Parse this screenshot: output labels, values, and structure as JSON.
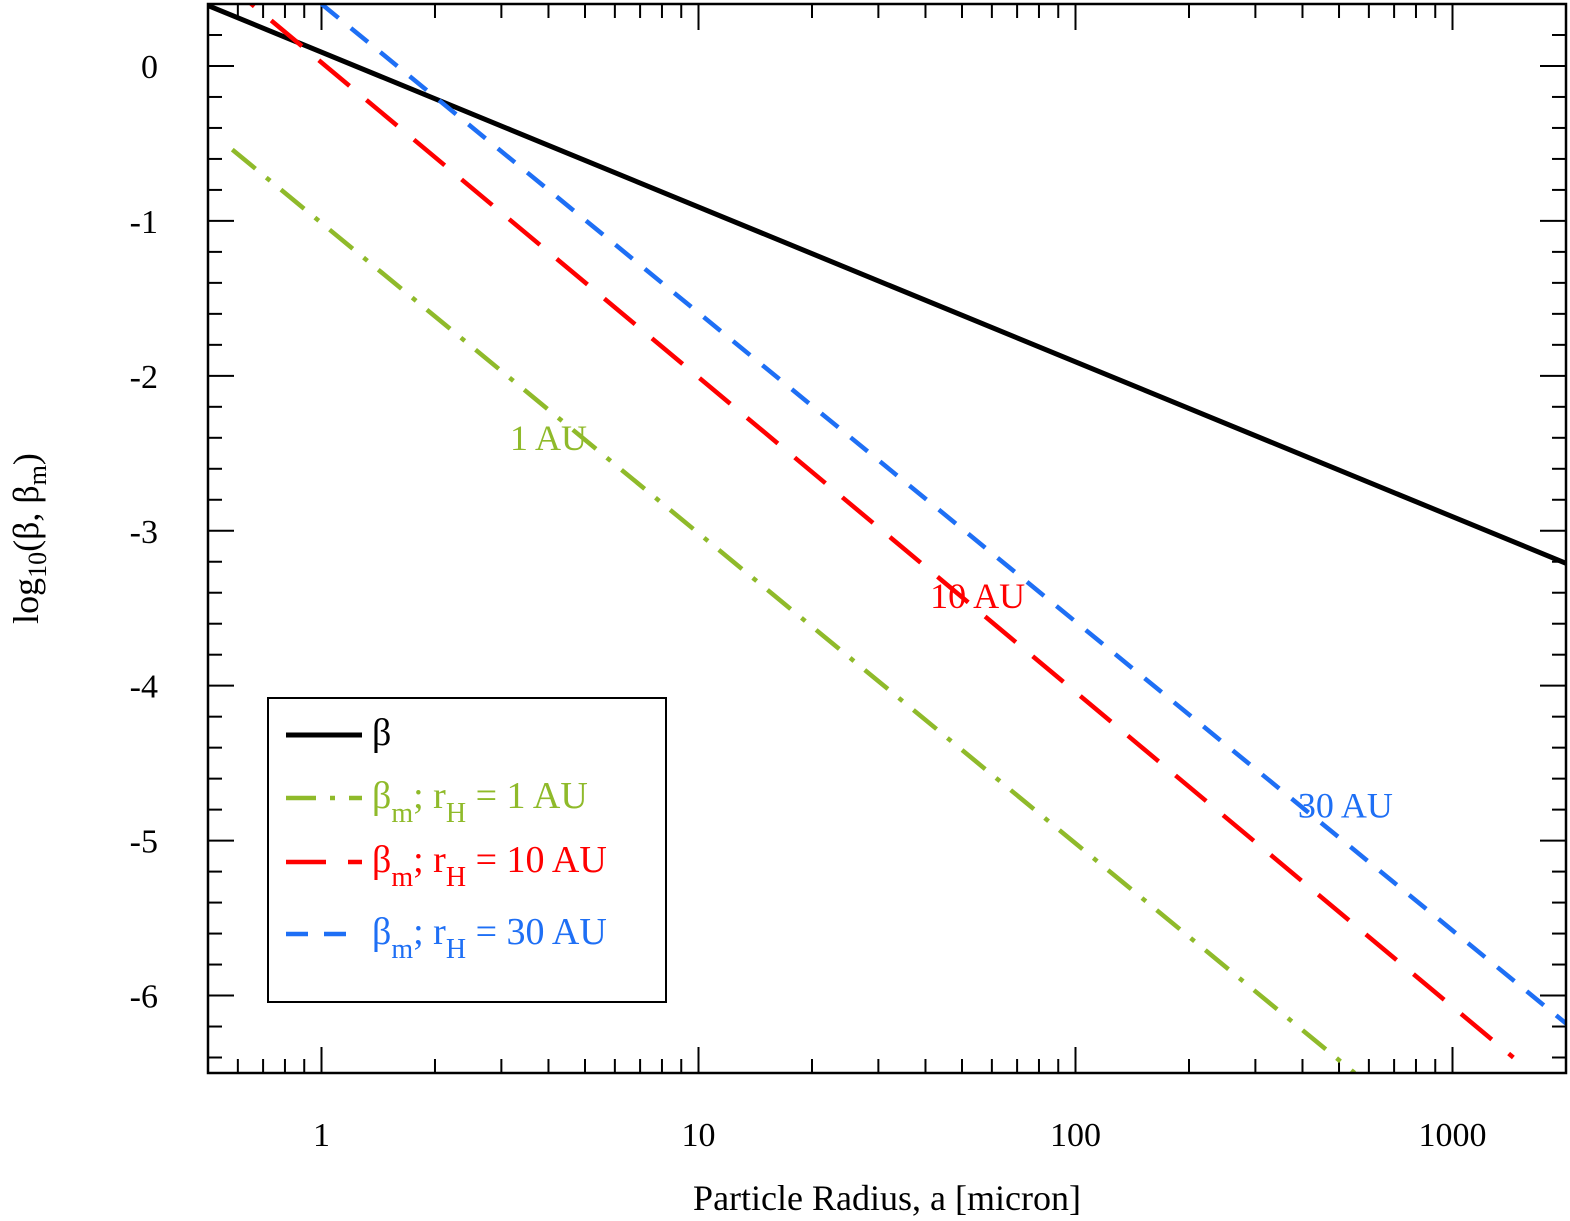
{
  "chart_data": {
    "type": "line",
    "xlabel": "Particle Radius, a [micron]",
    "ylabel": {
      "prefix": "log",
      "sub": "10",
      "mid": "(β, β",
      "sub2": "m",
      "suffix": ")"
    },
    "xscale": "log",
    "xlim": [
      0.5,
      2000
    ],
    "ylim": [
      -6.5,
      0.4
    ],
    "x_tick_labels": [
      {
        "value": 1,
        "label": "1"
      },
      {
        "value": 10,
        "label": "10"
      },
      {
        "value": 100,
        "label": "100"
      },
      {
        "value": 1000,
        "label": "1000"
      }
    ],
    "y_tick_labels": [
      {
        "value": 0,
        "label": "0"
      },
      {
        "value": -1,
        "label": "-1"
      },
      {
        "value": -2,
        "label": "-2"
      },
      {
        "value": -3,
        "label": "-3"
      },
      {
        "value": -4,
        "label": "-4"
      },
      {
        "value": -5,
        "label": "-5"
      },
      {
        "value": -6,
        "label": "-6"
      }
    ],
    "grid": false,
    "legend_position": "lower-left",
    "series": [
      {
        "id": "beta",
        "color": "#000000",
        "dash": "solid",
        "x": [
          0.5,
          2000
        ],
        "y": [
          0.39,
          -3.21
        ],
        "legend": {
          "main": "β",
          "sub": "",
          "mid": "",
          "sub2": "",
          "tail": ""
        }
      },
      {
        "id": "bm1",
        "color": "#8fba2a",
        "dash": "dashdot",
        "x": [
          0.58,
          550
        ],
        "y": [
          -0.54,
          -6.5
        ],
        "legend": {
          "main": "β",
          "sub": "m",
          "mid": "; r",
          "sub2": "H",
          "tail": " = 1 AU"
        }
      },
      {
        "id": "bm10",
        "color": "#ff0000",
        "dash": "longdash",
        "x": [
          0.55,
          1450
        ],
        "y": [
          0.55,
          -6.4
        ],
        "legend": {
          "main": "β",
          "sub": "m",
          "mid": "; r",
          "sub2": "H",
          "tail": " = 10 AU"
        }
      },
      {
        "id": "bm30",
        "color": "#1e6ff5",
        "dash": "dash",
        "x": [
          1.0,
          2000
        ],
        "y": [
          0.4,
          -6.18
        ],
        "legend": {
          "main": "β",
          "sub": "m",
          "mid": "; r",
          "sub2": "H",
          "tail": " = 30 AU"
        }
      }
    ],
    "annotations": [
      {
        "text": "1 AU",
        "color": "#8fba2a",
        "x": 4.0,
        "y": -2.48
      },
      {
        "text": "10 AU",
        "color": "#ff0000",
        "x": 55,
        "y": -3.5
      },
      {
        "text": "30 AU",
        "color": "#1e6ff5",
        "x": 520,
        "y": -4.85
      }
    ]
  }
}
